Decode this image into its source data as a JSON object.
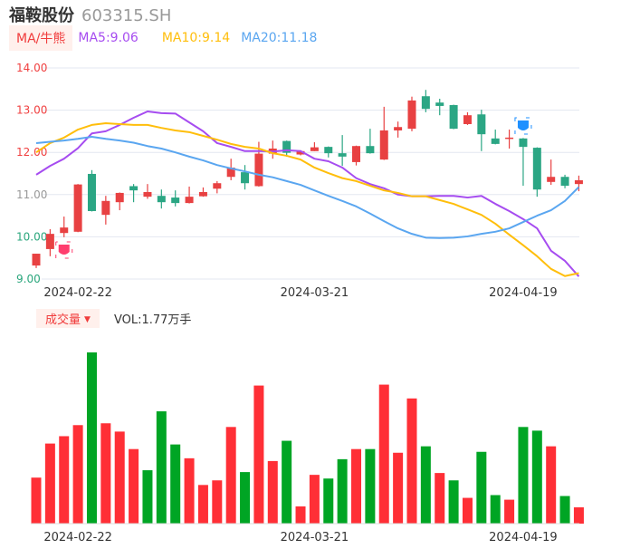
{
  "header": {
    "name": "福鞍股份",
    "code": "603315.SH"
  },
  "ma_row": {
    "tag": "MA/牛熊",
    "ma5": "MA5:9.06",
    "ma10": "MA10:9.14",
    "ma20": "MA20:11.18"
  },
  "volume_row": {
    "tag": "成交量",
    "tag_icon": "triangle-down-icon",
    "value": "VOL:1.77万手"
  },
  "colors": {
    "up": "#e84142",
    "down": "#2ba684",
    "vol_up": "#ff2f36",
    "vol_down": "#00a524",
    "ma5": "#a64cf0",
    "ma10": "#ffbe0b",
    "ma20": "#5aa6f0",
    "grid": "#e3e7f0"
  },
  "chart_data": [
    {
      "type": "candlestick",
      "ylim": [
        9,
        14
      ],
      "y_ticks": [
        "14.00",
        "13.00",
        "12.00",
        "11.00",
        "10.00",
        "9.00"
      ],
      "x_ticks": [
        {
          "index": 3,
          "label": "2024-02-22"
        },
        {
          "index": 20,
          "label": "2024-03-21"
        },
        {
          "index": 35,
          "label": "2024-04-19"
        }
      ],
      "grid": true,
      "ohlc": [
        [
          9.32,
          9.6,
          9.6,
          9.26
        ],
        [
          9.71,
          10.07,
          10.18,
          9.54
        ],
        [
          10.09,
          10.22,
          10.48,
          9.99
        ],
        [
          10.12,
          11.24,
          11.25,
          10.11
        ],
        [
          11.49,
          10.61,
          11.58,
          10.6
        ],
        [
          10.52,
          10.85,
          10.97,
          10.29
        ],
        [
          10.82,
          11.04,
          11.05,
          10.63
        ],
        [
          11.2,
          11.1,
          11.25,
          10.82
        ],
        [
          10.95,
          11.06,
          11.25,
          10.9
        ],
        [
          10.97,
          10.82,
          11.12,
          10.67
        ],
        [
          10.93,
          10.8,
          11.1,
          10.72
        ],
        [
          10.8,
          10.95,
          11.19,
          10.79
        ],
        [
          10.96,
          11.06,
          11.17,
          10.95
        ],
        [
          11.14,
          11.27,
          11.32,
          11.03
        ],
        [
          11.42,
          11.64,
          11.85,
          11.34
        ],
        [
          11.53,
          11.27,
          11.7,
          11.12
        ],
        [
          11.2,
          11.97,
          12.25,
          11.19
        ],
        [
          11.97,
          12.09,
          12.28,
          11.85
        ],
        [
          12.27,
          11.99,
          12.28,
          11.9
        ],
        [
          11.95,
          12.03,
          12.05,
          11.93
        ],
        [
          12.03,
          12.12,
          12.24,
          12.03
        ],
        [
          12.13,
          11.98,
          12.14,
          11.88
        ],
        [
          11.98,
          11.9,
          12.41,
          11.68
        ],
        [
          11.77,
          12.15,
          12.16,
          11.69
        ],
        [
          12.15,
          11.98,
          12.56,
          11.97
        ],
        [
          11.83,
          12.52,
          13.08,
          11.82
        ],
        [
          12.52,
          12.6,
          12.73,
          12.35
        ],
        [
          12.56,
          13.23,
          13.32,
          12.5
        ],
        [
          13.33,
          13.03,
          13.48,
          12.95
        ],
        [
          13.18,
          13.1,
          13.27,
          12.88
        ],
        [
          13.12,
          12.56,
          13.13,
          12.55
        ],
        [
          12.67,
          12.88,
          12.95,
          12.65
        ],
        [
          12.9,
          12.43,
          13.01,
          12.03
        ],
        [
          12.33,
          12.2,
          12.54,
          12.19
        ],
        [
          12.33,
          12.35,
          12.54,
          12.09
        ],
        [
          12.33,
          12.13,
          12.34,
          11.21
        ],
        [
          12.11,
          11.12,
          12.12,
          10.95
        ],
        [
          11.3,
          11.42,
          11.83,
          11.23
        ],
        [
          11.42,
          11.21,
          11.47,
          11.15
        ],
        [
          11.25,
          11.34,
          11.45,
          11.08
        ]
      ],
      "series": [
        {
          "name": "MA5",
          "values": [
            11.47,
            11.68,
            11.85,
            12.1,
            12.45,
            12.5,
            12.65,
            12.82,
            12.97,
            12.93,
            12.92,
            12.71,
            12.5,
            12.22,
            12.13,
            12.03,
            12.03,
            12.02,
            12.05,
            12.03,
            11.85,
            11.79,
            11.64,
            11.39,
            11.25,
            11.15,
            11.0,
            10.96,
            10.96,
            10.97,
            10.97,
            10.93,
            10.97,
            10.78,
            10.61,
            10.42,
            10.2,
            9.67,
            9.43,
            9.06
          ]
        },
        {
          "name": "MA10",
          "values": [
            12.0,
            12.22,
            12.35,
            12.54,
            12.65,
            12.69,
            12.67,
            12.65,
            12.65,
            12.58,
            12.52,
            12.48,
            12.39,
            12.3,
            12.2,
            12.13,
            12.09,
            11.98,
            11.92,
            11.83,
            11.64,
            11.51,
            11.39,
            11.32,
            11.21,
            11.1,
            11.04,
            10.96,
            10.96,
            10.87,
            10.78,
            10.65,
            10.52,
            10.31,
            10.05,
            9.8,
            9.54,
            9.24,
            9.07,
            9.14
          ]
        },
        {
          "name": "MA20",
          "values": [
            12.22,
            12.25,
            12.28,
            12.32,
            12.37,
            12.32,
            12.28,
            12.23,
            12.15,
            12.09,
            12.0,
            11.9,
            11.81,
            11.7,
            11.62,
            11.55,
            11.47,
            11.41,
            11.32,
            11.23,
            11.1,
            10.97,
            10.85,
            10.72,
            10.55,
            10.37,
            10.2,
            10.07,
            9.98,
            9.97,
            9.98,
            10.01,
            10.07,
            10.12,
            10.2,
            10.35,
            10.5,
            10.63,
            10.85,
            11.18
          ]
        }
      ],
      "markers": [
        {
          "index": 2,
          "kind": "bull",
          "icon": "bull-badge-icon",
          "color": "#ff3d6e"
        },
        {
          "index": 35,
          "kind": "bear",
          "icon": "bear-badge-icon",
          "color": "#1e90ff"
        }
      ]
    },
    {
      "type": "bar",
      "unit": "万手",
      "x_ticks": [
        {
          "index": 3,
          "label": "2024-02-22"
        },
        {
          "index": 20,
          "label": "2024-03-21"
        },
        {
          "index": 35,
          "label": "2024-04-19"
        }
      ],
      "values": [
        5.0,
        8.7,
        9.5,
        10.7,
        18.6,
        10.9,
        10.0,
        8.1,
        5.8,
        12.2,
        8.6,
        7.1,
        4.2,
        4.7,
        10.5,
        5.6,
        15.0,
        6.8,
        9.0,
        1.87,
        5.3,
        4.9,
        7.0,
        8.1,
        8.1,
        15.1,
        7.7,
        13.6,
        8.4,
        5.5,
        4.7,
        2.8,
        7.8,
        3.1,
        2.6,
        10.5,
        10.1,
        8.4,
        3.0,
        1.77
      ],
      "up": [
        true,
        true,
        true,
        true,
        false,
        true,
        true,
        true,
        false,
        false,
        false,
        true,
        true,
        true,
        true,
        false,
        true,
        true,
        false,
        true,
        true,
        false,
        false,
        true,
        false,
        true,
        true,
        true,
        false,
        true,
        false,
        true,
        false,
        false,
        true,
        false,
        false,
        true,
        false,
        true
      ]
    }
  ]
}
